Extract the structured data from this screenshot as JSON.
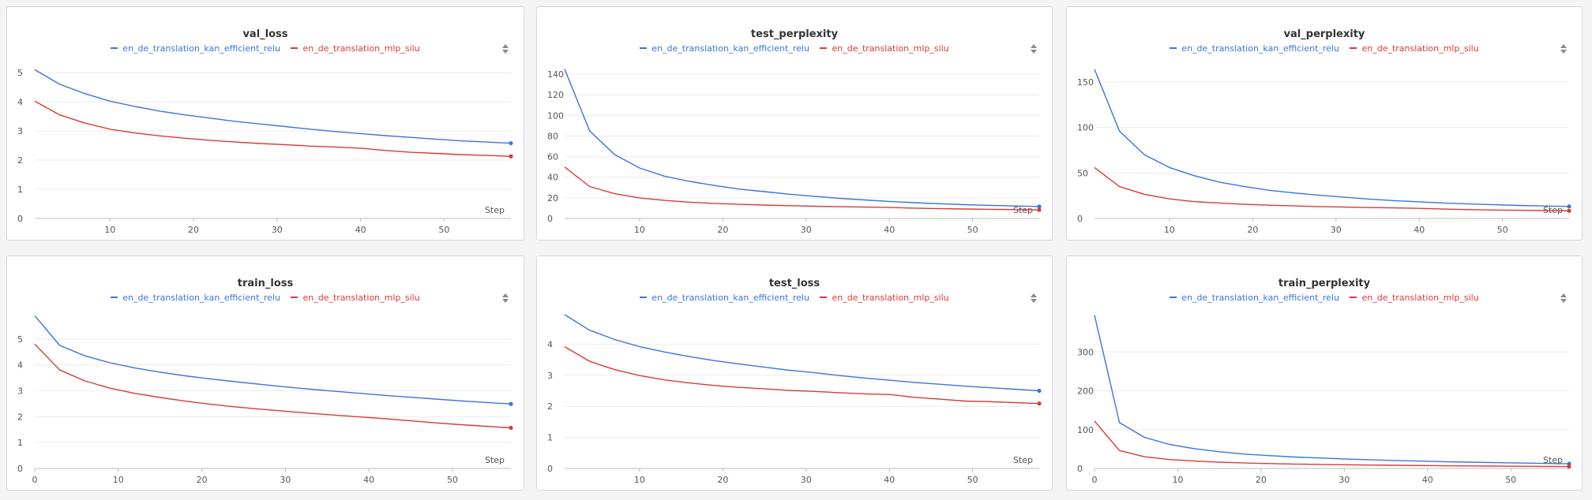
{
  "colors": {
    "kan": "#3b74dd",
    "mlp": "#d93a3a"
  },
  "chart_data": [
    {
      "type": "line",
      "title": "val_loss",
      "xlabel": "Step",
      "xlim": [
        1,
        58
      ],
      "ylim": [
        0,
        5.3
      ],
      "xticks": [
        10,
        20,
        30,
        40,
        50
      ],
      "yticks": [
        0,
        1,
        2,
        3,
        4,
        5
      ],
      "grid": true,
      "legend_placement": "top",
      "x": [
        1,
        4,
        7,
        10,
        13,
        16,
        19,
        22,
        25,
        28,
        31,
        34,
        37,
        40,
        43,
        46,
        49,
        52,
        55,
        58
      ],
      "series": [
        {
          "name": "en_de_translation_kan_efficient_relu",
          "color": "#3b74dd",
          "values": [
            5.1,
            4.6,
            4.28,
            4.02,
            3.84,
            3.68,
            3.55,
            3.44,
            3.33,
            3.24,
            3.15,
            3.06,
            2.98,
            2.91,
            2.84,
            2.78,
            2.72,
            2.66,
            2.62,
            2.58
          ]
        },
        {
          "name": "en_de_translation_mlp_silu",
          "color": "#d93a3a",
          "values": [
            4.02,
            3.55,
            3.27,
            3.06,
            2.93,
            2.83,
            2.75,
            2.68,
            2.62,
            2.57,
            2.53,
            2.48,
            2.45,
            2.41,
            2.33,
            2.27,
            2.23,
            2.19,
            2.16,
            2.13
          ]
        }
      ]
    },
    {
      "type": "line",
      "title": "test_perplexity",
      "xlabel": "Step",
      "xlim": [
        1,
        58
      ],
      "ylim": [
        0,
        150
      ],
      "xticks": [
        10,
        20,
        30,
        40,
        50
      ],
      "yticks": [
        0,
        20,
        40,
        60,
        80,
        100,
        120,
        140
      ],
      "grid": true,
      "legend_placement": "top",
      "x": [
        1,
        4,
        7,
        10,
        13,
        16,
        19,
        22,
        25,
        28,
        31,
        34,
        37,
        40,
        43,
        46,
        49,
        52,
        55,
        58
      ],
      "series": [
        {
          "name": "en_de_translation_kan_efficient_relu",
          "color": "#3b74dd",
          "values": [
            145,
            85,
            62,
            49,
            41,
            36,
            32,
            28.5,
            26,
            23.5,
            21.5,
            19.5,
            18,
            16.5,
            15.3,
            14.3,
            13.4,
            12.7,
            12.1,
            11.6
          ]
        },
        {
          "name": "en_de_translation_mlp_silu",
          "color": "#d93a3a",
          "values": [
            50,
            31,
            24,
            20,
            17.5,
            15.8,
            14.6,
            13.7,
            13,
            12.4,
            11.9,
            11.4,
            11,
            10.6,
            10,
            9.5,
            9.2,
            8.9,
            8.6,
            8.3
          ]
        }
      ]
    },
    {
      "type": "line",
      "title": "val_perplexity",
      "xlabel": "Step",
      "xlim": [
        1,
        58
      ],
      "ylim": [
        0,
        170
      ],
      "xticks": [
        10,
        20,
        30,
        40,
        50
      ],
      "yticks": [
        0,
        50,
        100,
        150
      ],
      "grid": true,
      "legend_placement": "top",
      "x": [
        1,
        4,
        7,
        10,
        13,
        16,
        19,
        22,
        25,
        28,
        31,
        34,
        37,
        40,
        43,
        46,
        49,
        52,
        55,
        58
      ],
      "series": [
        {
          "name": "en_de_translation_kan_efficient_relu",
          "color": "#3b74dd",
          "values": [
            164,
            96,
            70,
            56,
            47,
            40,
            35,
            31,
            28,
            25.5,
            23.3,
            21.3,
            19.6,
            18.3,
            17,
            16,
            15.1,
            14.3,
            13.7,
            13.2
          ]
        },
        {
          "name": "en_de_translation_mlp_silu",
          "color": "#d93a3a",
          "values": [
            56,
            35,
            26.5,
            21.5,
            18.5,
            17,
            15.5,
            14.6,
            13.8,
            13.1,
            12.5,
            12,
            11.6,
            11.1,
            10.3,
            9.7,
            9.3,
            9,
            8.7,
            8.4
          ]
        }
      ]
    },
    {
      "type": "line",
      "title": "train_loss",
      "xlabel": "Step",
      "xlim": [
        0,
        57
      ],
      "ylim": [
        0,
        6
      ],
      "xticks": [
        0,
        10,
        20,
        30,
        40,
        50
      ],
      "yticks": [
        0,
        1,
        2,
        3,
        4,
        5
      ],
      "grid": true,
      "legend_placement": "top",
      "x": [
        0,
        3,
        6,
        9,
        12,
        15,
        18,
        21,
        24,
        27,
        30,
        33,
        36,
        39,
        42,
        45,
        48,
        51,
        54,
        57
      ],
      "series": [
        {
          "name": "en_de_translation_kan_efficient_relu",
          "color": "#3b74dd",
          "values": [
            5.9,
            4.75,
            4.35,
            4.08,
            3.88,
            3.72,
            3.58,
            3.46,
            3.35,
            3.25,
            3.15,
            3.06,
            2.98,
            2.9,
            2.82,
            2.75,
            2.68,
            2.61,
            2.55,
            2.49
          ]
        },
        {
          "name": "en_de_translation_mlp_silu",
          "color": "#d93a3a",
          "values": [
            4.8,
            3.8,
            3.38,
            3.1,
            2.9,
            2.74,
            2.6,
            2.48,
            2.38,
            2.29,
            2.21,
            2.13,
            2.06,
            1.99,
            1.92,
            1.84,
            1.76,
            1.69,
            1.63,
            1.57
          ]
        }
      ]
    },
    {
      "type": "line",
      "title": "test_loss",
      "xlabel": "Step",
      "xlim": [
        1,
        58
      ],
      "ylim": [
        0,
        5
      ],
      "xticks": [
        10,
        20,
        30,
        40,
        50
      ],
      "yticks": [
        0,
        1,
        2,
        3,
        4
      ],
      "grid": true,
      "legend_placement": "top",
      "x": [
        1,
        4,
        7,
        10,
        13,
        16,
        19,
        22,
        25,
        28,
        31,
        34,
        37,
        40,
        43,
        46,
        49,
        52,
        55,
        58
      ],
      "series": [
        {
          "name": "en_de_translation_kan_efficient_relu",
          "color": "#3b74dd",
          "values": [
            4.95,
            4.45,
            4.15,
            3.92,
            3.75,
            3.6,
            3.47,
            3.36,
            3.26,
            3.16,
            3.08,
            2.99,
            2.91,
            2.84,
            2.77,
            2.71,
            2.65,
            2.6,
            2.55,
            2.5
          ]
        },
        {
          "name": "en_de_translation_mlp_silu",
          "color": "#d93a3a",
          "values": [
            3.92,
            3.45,
            3.18,
            2.99,
            2.85,
            2.75,
            2.67,
            2.61,
            2.56,
            2.51,
            2.48,
            2.44,
            2.4,
            2.38,
            2.29,
            2.23,
            2.17,
            2.15,
            2.12,
            2.09
          ]
        }
      ]
    },
    {
      "type": "line",
      "title": "train_perplexity",
      "xlabel": "Step",
      "xlim": [
        0,
        57
      ],
      "ylim": [
        0,
        400
      ],
      "xticks": [
        0,
        10,
        20,
        30,
        40,
        50
      ],
      "yticks": [
        0,
        100,
        200,
        300
      ],
      "grid": true,
      "legend_placement": "top",
      "x": [
        0,
        3,
        6,
        9,
        12,
        15,
        18,
        21,
        24,
        27,
        30,
        33,
        36,
        39,
        42,
        45,
        48,
        51,
        54,
        57
      ],
      "series": [
        {
          "name": "en_de_translation_kan_efficient_relu",
          "color": "#3b74dd",
          "values": [
            395,
            118,
            80,
            62,
            51,
            43,
            37,
            33,
            29.5,
            27,
            24.5,
            22.5,
            20.5,
            19,
            17.5,
            16.2,
            15,
            14,
            13,
            12
          ]
        },
        {
          "name": "en_de_translation_mlp_silu",
          "color": "#d93a3a",
          "values": [
            122,
            46,
            30,
            23,
            19,
            16,
            14,
            12.5,
            11.3,
            10.3,
            9.5,
            8.8,
            8.1,
            7.5,
            7,
            6.5,
            6,
            5.6,
            5.2,
            4.8
          ]
        }
      ]
    }
  ]
}
